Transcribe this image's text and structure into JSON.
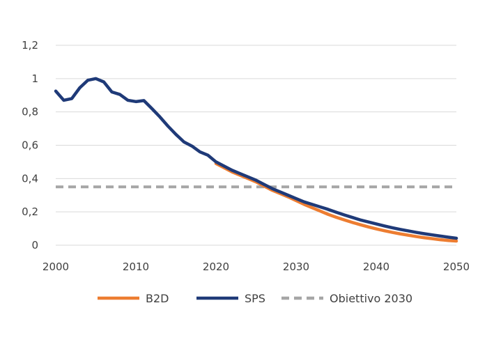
{
  "chart_data": {
    "type": "line",
    "title": "",
    "xlabel": "",
    "ylabel": "",
    "xlim": [
      2000,
      2050
    ],
    "ylim": [
      0,
      1.2
    ],
    "xticks": [
      "2000",
      "2010",
      "2020",
      "2030",
      "2040",
      "2050"
    ],
    "yticks": [
      "0",
      "0,2",
      "0,4",
      "0,6",
      "0,8",
      "1",
      "1,2"
    ],
    "grid": "horizontal",
    "legend_position": "bottom",
    "series": [
      {
        "name": "B2D",
        "color": "#ED7D31",
        "style": "solid",
        "x": [
          2020,
          2021,
          2022,
          2023,
          2024,
          2025,
          2026,
          2027,
          2028,
          2029,
          2030,
          2031,
          2032,
          2033,
          2034,
          2035,
          2036,
          2037,
          2038,
          2039,
          2040,
          2041,
          2042,
          2043,
          2044,
          2045,
          2046,
          2047,
          2048,
          2049,
          2050
        ],
        "values": [
          0.49,
          0.465,
          0.44,
          0.42,
          0.4,
          0.38,
          0.355,
          0.33,
          0.31,
          0.29,
          0.268,
          0.245,
          0.225,
          0.205,
          0.185,
          0.168,
          0.152,
          0.137,
          0.123,
          0.11,
          0.098,
          0.087,
          0.077,
          0.068,
          0.06,
          0.052,
          0.045,
          0.039,
          0.033,
          0.028,
          0.025
        ]
      },
      {
        "name": "SPS",
        "color": "#1F3A78",
        "style": "solid",
        "x": [
          2000,
          2001,
          2002,
          2003,
          2004,
          2005,
          2006,
          2007,
          2008,
          2009,
          2010,
          2011,
          2012,
          2013,
          2014,
          2015,
          2016,
          2017,
          2018,
          2019,
          2020,
          2021,
          2022,
          2023,
          2024,
          2025,
          2026,
          2027,
          2028,
          2029,
          2030,
          2031,
          2032,
          2033,
          2034,
          2035,
          2036,
          2037,
          2038,
          2039,
          2040,
          2041,
          2042,
          2043,
          2044,
          2045,
          2046,
          2047,
          2048,
          2049,
          2050
        ],
        "values": [
          0.925,
          0.87,
          0.88,
          0.945,
          0.99,
          1.0,
          0.98,
          0.92,
          0.905,
          0.87,
          0.862,
          0.868,
          0.82,
          0.77,
          0.715,
          0.665,
          0.62,
          0.595,
          0.56,
          0.54,
          0.5,
          0.475,
          0.45,
          0.43,
          0.41,
          0.39,
          0.365,
          0.34,
          0.32,
          0.3,
          0.28,
          0.26,
          0.245,
          0.23,
          0.215,
          0.198,
          0.182,
          0.167,
          0.152,
          0.14,
          0.128,
          0.116,
          0.105,
          0.095,
          0.086,
          0.077,
          0.069,
          0.062,
          0.055,
          0.048,
          0.042
        ]
      },
      {
        "name": "Obiettivo 2030",
        "color": "#A6A6A6",
        "style": "dashed",
        "x": [
          2000,
          2050
        ],
        "values": [
          0.35,
          0.35
        ]
      }
    ]
  }
}
